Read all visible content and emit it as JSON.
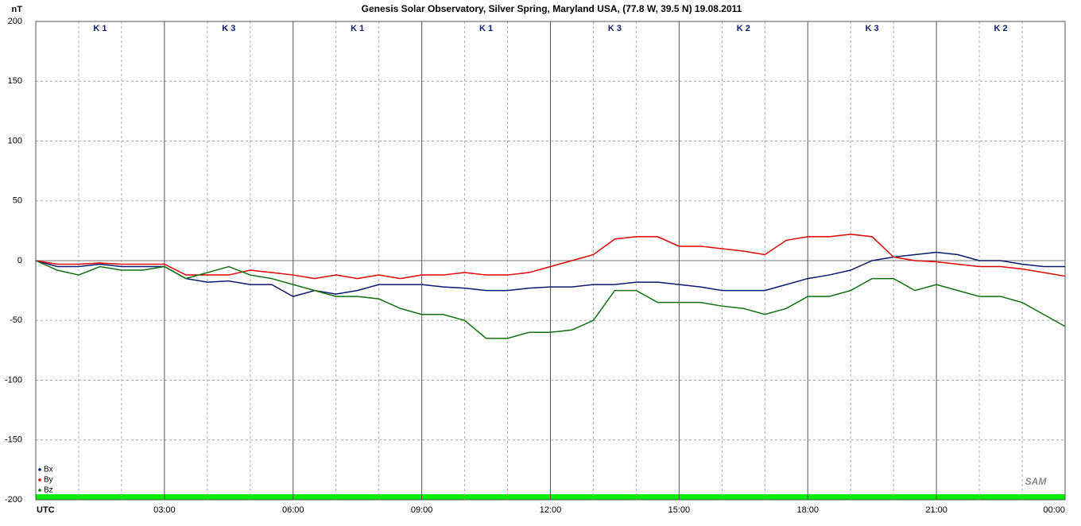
{
  "chart_data": {
    "type": "line",
    "title": "Genesis Solar Observatory, Silver Spring, Maryland USA, (77.8 W, 39.5 N)  19.08.2011",
    "y_label": "nT",
    "k_labels": [
      "K 1",
      "K 3",
      "K 1",
      "K 1",
      "K 3",
      "K 2",
      "K 3",
      "K 2"
    ],
    "logo": "SAM",
    "x": [
      0,
      0.5,
      1,
      1.5,
      2,
      2.5,
      3,
      3.5,
      4,
      4.5,
      5,
      5.5,
      6,
      6.5,
      7,
      7.5,
      8,
      8.5,
      9,
      9.5,
      10,
      10.5,
      11,
      11.5,
      12,
      12.5,
      13,
      13.5,
      14,
      14.5,
      15,
      15.5,
      16,
      16.5,
      17,
      17.5,
      18,
      18.5,
      19,
      19.5,
      20,
      20.5,
      21,
      21.5,
      22,
      22.5,
      23,
      23.5,
      24
    ],
    "series": [
      {
        "name": "Bx",
        "color": "#0a1a6e",
        "values": [
          0,
          -5,
          -5,
          -3,
          -5,
          -5,
          -5,
          -15,
          -18,
          -17,
          -20,
          -20,
          -30,
          -25,
          -28,
          -25,
          -20,
          -20,
          -20,
          -22,
          -23,
          -25,
          -25,
          -23,
          -22,
          -22,
          -20,
          -20,
          -18,
          -18,
          -20,
          -22,
          -25,
          -25,
          -25,
          -20,
          -15,
          -12,
          -8,
          0,
          3,
          5,
          7,
          5,
          0,
          0,
          -3,
          -5,
          -5
        ]
      },
      {
        "name": "By",
        "color": "#e00000",
        "values": [
          0,
          -3,
          -3,
          -2,
          -3,
          -3,
          -3,
          -12,
          -12,
          -12,
          -8,
          -10,
          -12,
          -15,
          -12,
          -15,
          -12,
          -15,
          -12,
          -12,
          -10,
          -12,
          -12,
          -10,
          -5,
          0,
          5,
          18,
          20,
          20,
          12,
          12,
          10,
          8,
          5,
          17,
          20,
          20,
          22,
          20,
          3,
          0,
          -1,
          -3,
          -5,
          -5,
          -7,
          -10,
          -13
        ]
      },
      {
        "name": "Bz",
        "color": "#107010",
        "values": [
          0,
          -8,
          -12,
          -5,
          -8,
          -8,
          -5,
          -15,
          -10,
          -5,
          -12,
          -15,
          -20,
          -25,
          -30,
          -30,
          -32,
          -40,
          -45,
          -45,
          -50,
          -65,
          -65,
          -60,
          -60,
          -58,
          -50,
          -25,
          -25,
          -35,
          -35,
          -35,
          -38,
          -40,
          -45,
          -40,
          -30,
          -30,
          -25,
          -15,
          -15,
          -25,
          -20,
          -25,
          -30,
          -30,
          -35,
          -45,
          -55
        ]
      }
    ],
    "xlim": [
      0,
      24
    ],
    "xticks": [
      {
        "value": 0,
        "label": "UTC"
      },
      {
        "value": 3,
        "label": "03:00"
      },
      {
        "value": 6,
        "label": "06:00"
      },
      {
        "value": 9,
        "label": "09:00"
      },
      {
        "value": 12,
        "label": "12:00"
      },
      {
        "value": 15,
        "label": "15:00"
      },
      {
        "value": 18,
        "label": "18:00"
      },
      {
        "value": 21,
        "label": "21:00"
      },
      {
        "value": 24,
        "label": "00:00"
      }
    ],
    "ylim": [
      -200,
      200
    ],
    "yticks": [
      -200,
      -150,
      -100,
      -50,
      0,
      50,
      100,
      150,
      200
    ],
    "grid": true
  }
}
